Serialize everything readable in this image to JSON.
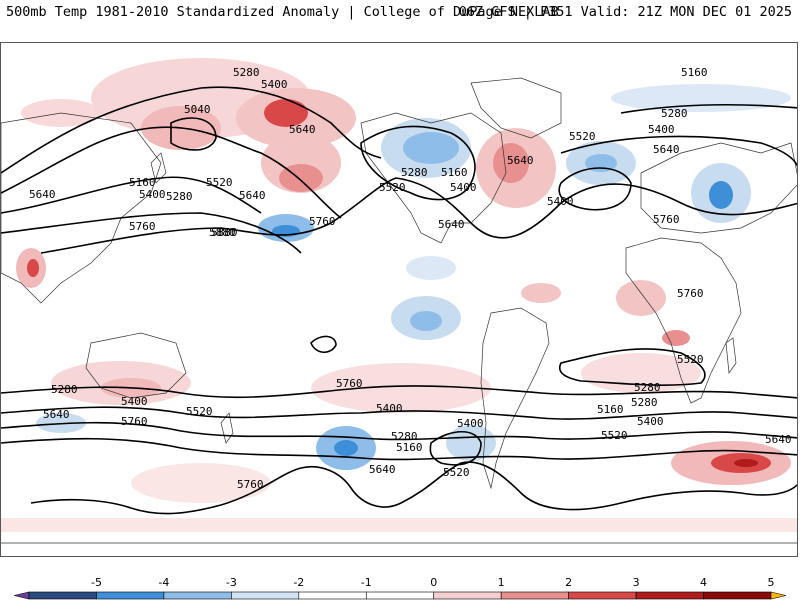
{
  "header": {
    "title_left": "500mb Temp 1981-2010 Standardized Anomaly | College of DuPage NEXLAB",
    "title_right": "06Z GFS | F351 Valid: 21Z MON DEC 01 2025"
  },
  "map": {
    "field": "500mb temperature standardized anomaly",
    "contour_labels": [
      "5280",
      "5400",
      "5040",
      "5640",
      "5160",
      "5640",
      "5400",
      "5280",
      "5520",
      "5640",
      "5760",
      "5880",
      "5280",
      "5160",
      "5520",
      "5400",
      "5760",
      "5520",
      "5640",
      "5400",
      "5160",
      "5280",
      "5400",
      "5640",
      "5760",
      "5880",
      "5640",
      "5760",
      "5520",
      "5280",
      "5400",
      "5760",
      "5640",
      "5520",
      "5400",
      "5280",
      "5160",
      "5640",
      "5760",
      "5520",
      "5400",
      "5280",
      "5160",
      "5280",
      "5400",
      "5520",
      "5640",
      "5760"
    ]
  },
  "colorbar": {
    "ticks": [
      "-5",
      "-4",
      "-3",
      "-2",
      "-1",
      "0",
      "1",
      "2",
      "3",
      "4",
      "5"
    ],
    "colors": [
      "#6a3d9a",
      "#2c4a7e",
      "#3f8fd8",
      "#8fbde9",
      "#d4e4f4",
      "#ffffff",
      "#ffffff",
      "#f4cfcf",
      "#e89090",
      "#d94848",
      "#b01c1c",
      "#8a0a0a",
      "#ffb400"
    ]
  }
}
